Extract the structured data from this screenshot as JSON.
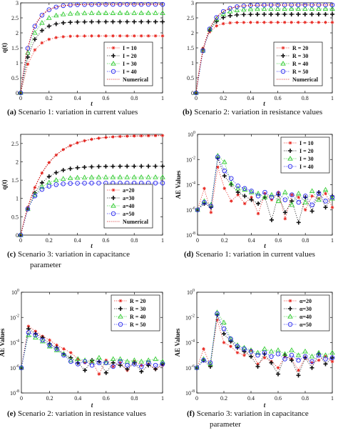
{
  "colors": {
    "red": "#e8261f",
    "black": "#111111",
    "green": "#33cc33",
    "blue": "#2222ee",
    "numerical": "#cc0000"
  },
  "chart_data": [
    {
      "id": "a",
      "type": "line",
      "caption_letter": "(a)",
      "caption_text": " Scenario 1: variation in current values",
      "xlabel": "t",
      "ylabel": "q(t)",
      "ylim": [
        0,
        3
      ],
      "xlim": [
        0,
        1
      ],
      "log_y": false,
      "x_ticks": [
        "0",
        "0.2",
        "0.4",
        "0.6",
        "0.8",
        "1"
      ],
      "y_ticks": [
        "0",
        "0.5",
        "1",
        "1.5",
        "2",
        "2.5",
        "3"
      ],
      "legend_position": "bottom-right",
      "series": [
        {
          "name": "I = 10",
          "color": "red",
          "marker": "star",
          "plateau": 1.9,
          "rate": 14
        },
        {
          "name": "I = 20",
          "color": "black",
          "marker": "plus",
          "plateau": 2.37,
          "rate": 14
        },
        {
          "name": "I = 30",
          "color": "green",
          "marker": "triangle",
          "plateau": 2.66,
          "rate": 14
        },
        {
          "name": "I = 40",
          "color": "blue",
          "marker": "circle",
          "plateau": 2.95,
          "rate": 14
        },
        {
          "name": "Numerical",
          "color": "numerical",
          "marker": "none",
          "plateau": 2.95,
          "rate": 14
        }
      ]
    },
    {
      "id": "b",
      "type": "line",
      "caption_letter": "(b)",
      "caption_text": " Scenario 2: variation in resistance values",
      "xlabel": "t",
      "ylabel": "",
      "ylim": [
        0,
        3
      ],
      "xlim": [
        0,
        1
      ],
      "log_y": false,
      "x_ticks": [
        "0",
        "0.2",
        "0.4",
        "0.6",
        "0.8",
        "1"
      ],
      "y_ticks": [
        "0",
        "0.5",
        "1",
        "1.5",
        "2",
        "2.5",
        "3"
      ],
      "legend_position": "bottom-right",
      "series": [
        {
          "name": "R = 20",
          "color": "red",
          "marker": "star",
          "plateau": 2.35,
          "rate": 20
        },
        {
          "name": "R = 30",
          "color": "black",
          "marker": "plus",
          "plateau": 2.62,
          "rate": 16
        },
        {
          "name": "R = 40",
          "color": "green",
          "marker": "triangle",
          "plateau": 2.8,
          "rate": 14
        },
        {
          "name": "R = 50",
          "color": "blue",
          "marker": "circle",
          "plateau": 2.93,
          "rate": 13
        },
        {
          "name": "Numerical",
          "color": "numerical",
          "marker": "none",
          "plateau": 2.93,
          "rate": 13
        }
      ]
    },
    {
      "id": "c",
      "type": "line",
      "caption_letter": "(c)",
      "caption_text": " Scenario 3: variation in capacitance",
      "caption_line2": "parameter",
      "xlabel": "t",
      "ylabel": "q(t)",
      "ylim": [
        0,
        2.75
      ],
      "xlim": [
        0,
        1
      ],
      "log_y": false,
      "x_ticks": [
        "0",
        "0.2",
        "0.4",
        "0.6",
        "0.8",
        "1"
      ],
      "y_ticks": [
        "0",
        "0.5",
        "1",
        "1.5",
        "2",
        "2.5"
      ],
      "legend_position": "bottom-right",
      "series": [
        {
          "name": "a=20",
          "color": "red",
          "marker": "star",
          "plateau": 2.72,
          "rate": 6.5
        },
        {
          "name": "a=30",
          "color": "black",
          "marker": "plus",
          "plateau": 1.88,
          "rate": 9.5
        },
        {
          "name": "a=40",
          "color": "green",
          "marker": "triangle",
          "plateau": 1.58,
          "rate": 12
        },
        {
          "name": "a=50",
          "color": "blue",
          "marker": "circle",
          "plateau": 1.42,
          "rate": 14
        },
        {
          "name": "Numerical",
          "color": "numerical",
          "marker": "none",
          "plateau": 2.72,
          "rate": 6.5
        }
      ]
    },
    {
      "id": "d",
      "type": "line",
      "caption_letter": "(d)",
      "caption_text": " Scenario 1: variation in current values",
      "xlabel": "t",
      "ylabel": "AE Values",
      "log_y": true,
      "ylim_exp": [
        -8,
        0
      ],
      "xlim": [
        0,
        1
      ],
      "x_ticks": [
        "0",
        "0.2",
        "0.4",
        "0.6",
        "0.8",
        "1"
      ],
      "y_ticks": [
        "10-8",
        "10-6",
        "10-4",
        "10-2",
        "100"
      ],
      "legend_position": "top-right",
      "series": [
        {
          "name": "I = 10",
          "color": "red",
          "marker": "star",
          "logy": [
            -6,
            -4.3,
            -6.2,
            -2.6,
            -4.3,
            -5.3,
            -4.8,
            -5.5,
            -5.0,
            -6.3,
            -4.7,
            -5.2,
            -4.6,
            -6.7,
            -4.8,
            -5.0,
            -6.0,
            -4.9,
            -5.1,
            -4.7,
            -5.8
          ]
        },
        {
          "name": "I = 20",
          "color": "black",
          "marker": "plus",
          "logy": [
            -6,
            -5.5,
            -5.8,
            -1.9,
            -3.3,
            -4.0,
            -4.6,
            -4.9,
            -5.2,
            -5.5,
            -5.0,
            -6.8,
            -4.8,
            -6.2,
            -5.3,
            -7.0,
            -5.0,
            -6.1,
            -4.6,
            -5.8,
            -4.9
          ]
        },
        {
          "name": "I = 30",
          "color": "green",
          "marker": "triangle",
          "logy": [
            -6,
            -5.3,
            -5.6,
            -1.7,
            -2.2,
            -3.9,
            -4.3,
            -4.4,
            -4.6,
            -4.7,
            -5.0,
            -4.8,
            -5.3,
            -4.6,
            -5.6,
            -4.7,
            -5.4,
            -4.5,
            -5.2,
            -4.4,
            -5.1
          ]
        },
        {
          "name": "I = 40",
          "color": "blue",
          "marker": "circle",
          "logy": [
            -6,
            -5.4,
            -5.7,
            -1.8,
            -2.9,
            -3.5,
            -4.1,
            -4.3,
            -4.5,
            -4.9,
            -4.6,
            -5.0,
            -4.7,
            -5.2,
            -4.8,
            -5.4,
            -4.9,
            -5.6,
            -4.7,
            -5.3,
            -5.0
          ]
        }
      ]
    },
    {
      "id": "e",
      "type": "line",
      "caption_letter": "(e)",
      "caption_text": " Scenario 2: variation in resistance values",
      "xlabel": "t",
      "ylabel": "AE Values",
      "log_y": true,
      "ylim_exp": [
        -8,
        0
      ],
      "xlim": [
        0,
        1
      ],
      "x_ticks": [
        "0",
        "0.2",
        "0.4",
        "0.6",
        "0.8",
        "1"
      ],
      "y_ticks": [
        "10-8",
        "10-6",
        "10-4",
        "10-2",
        "100"
      ],
      "legend_position": "top-right",
      "series": [
        {
          "name": "R = 20",
          "color": "red",
          "marker": "star",
          "logy": [
            -6,
            -2.7,
            -3.1,
            -3.5,
            -3.8,
            -4.2,
            -4.5,
            -4.8,
            -5.3,
            -5.6,
            -5.5,
            -6.5,
            -5.4,
            -5.9,
            -5.6,
            -6.2,
            -5.5,
            -5.8,
            -5.7,
            -6.1,
            -5.8
          ]
        },
        {
          "name": "R = 30",
          "color": "black",
          "marker": "plus",
          "logy": [
            -6,
            -2.9,
            -3.3,
            -3.6,
            -4.1,
            -4.4,
            -4.9,
            -5.2,
            -5.6,
            -6.2,
            -5.4,
            -5.5,
            -6.4,
            -5.6,
            -5.8,
            -6.1,
            -5.6,
            -6.3,
            -5.8,
            -6.1,
            -5.7
          ]
        },
        {
          "name": "R = 40",
          "color": "green",
          "marker": "triangle",
          "logy": [
            -6,
            -3.4,
            -3.6,
            -3.9,
            -4.3,
            -4.6,
            -4.9,
            -5.4,
            -5.3,
            -5.4,
            -5.5,
            -5.2,
            -5.6,
            -5.3,
            -5.3,
            -5.5,
            -5.4,
            -5.5,
            -5.4,
            -5.3,
            -5.5
          ]
        },
        {
          "name": "R = 50",
          "color": "blue",
          "marker": "circle",
          "logy": [
            -6,
            -3.2,
            -3.4,
            -3.8,
            -4.2,
            -4.5,
            -5.0,
            -5.5,
            -5.7,
            -5.5,
            -5.8,
            -5.6,
            -5.6,
            -5.9,
            -5.5,
            -5.8,
            -5.7,
            -5.9,
            -5.6,
            -5.8,
            -5.7
          ]
        }
      ]
    },
    {
      "id": "f",
      "type": "line",
      "caption_letter": "(f)",
      "caption_text": " Scenario 3: variation in capacitance",
      "caption_line2": "parameter",
      "xlabel": "t",
      "ylabel": "AE Values",
      "log_y": true,
      "ylim_exp": [
        -8,
        0
      ],
      "xlim": [
        0,
        1
      ],
      "x_ticks": [
        "0",
        "0.2",
        "0.4",
        "0.6",
        "0.8",
        "1"
      ],
      "y_ticks": [
        "10-8",
        "10-6",
        "10-4",
        "10-2",
        "100"
      ],
      "legend_position": "top-right",
      "series": [
        {
          "name": "α=20",
          "color": "red",
          "marker": "star",
          "logy": [
            -6,
            -4.5,
            -5.8,
            -2.2,
            -4.0,
            -4.3,
            -4.8,
            -5.0,
            -4.6,
            -5.7,
            -5.2,
            -5.5,
            -6.0,
            -5.1,
            -5.3,
            -6.2,
            -5.2,
            -5.6,
            -5.4,
            -5.1,
            -5.5
          ]
        },
        {
          "name": "α=30",
          "color": "black",
          "marker": "plus",
          "logy": [
            -6,
            -5.4,
            -5.9,
            -1.8,
            -3.3,
            -3.9,
            -4.4,
            -4.7,
            -5.1,
            -5.9,
            -4.9,
            -5.6,
            -6.5,
            -5.0,
            -5.4,
            -6.6,
            -5.2,
            -6.0,
            -4.9,
            -5.7,
            -5.2
          ]
        },
        {
          "name": "α=40",
          "color": "green",
          "marker": "triangle",
          "logy": [
            -6,
            -5.3,
            -5.7,
            -1.6,
            -2.4,
            -3.7,
            -4.2,
            -4.4,
            -4.6,
            -4.8,
            -4.5,
            -4.7,
            -4.6,
            -4.9,
            -4.6,
            -5.0,
            -4.7,
            -5.1,
            -4.8,
            -5.0,
            -4.8
          ]
        },
        {
          "name": "α=50",
          "color": "blue",
          "marker": "circle",
          "logy": [
            -6,
            -5.4,
            -5.6,
            -1.7,
            -2.9,
            -3.7,
            -4.3,
            -4.5,
            -4.7,
            -5.0,
            -4.8,
            -5.1,
            -4.9,
            -5.3,
            -5.0,
            -5.4,
            -5.1,
            -5.5,
            -5.0,
            -5.3,
            -5.2
          ]
        }
      ]
    }
  ]
}
